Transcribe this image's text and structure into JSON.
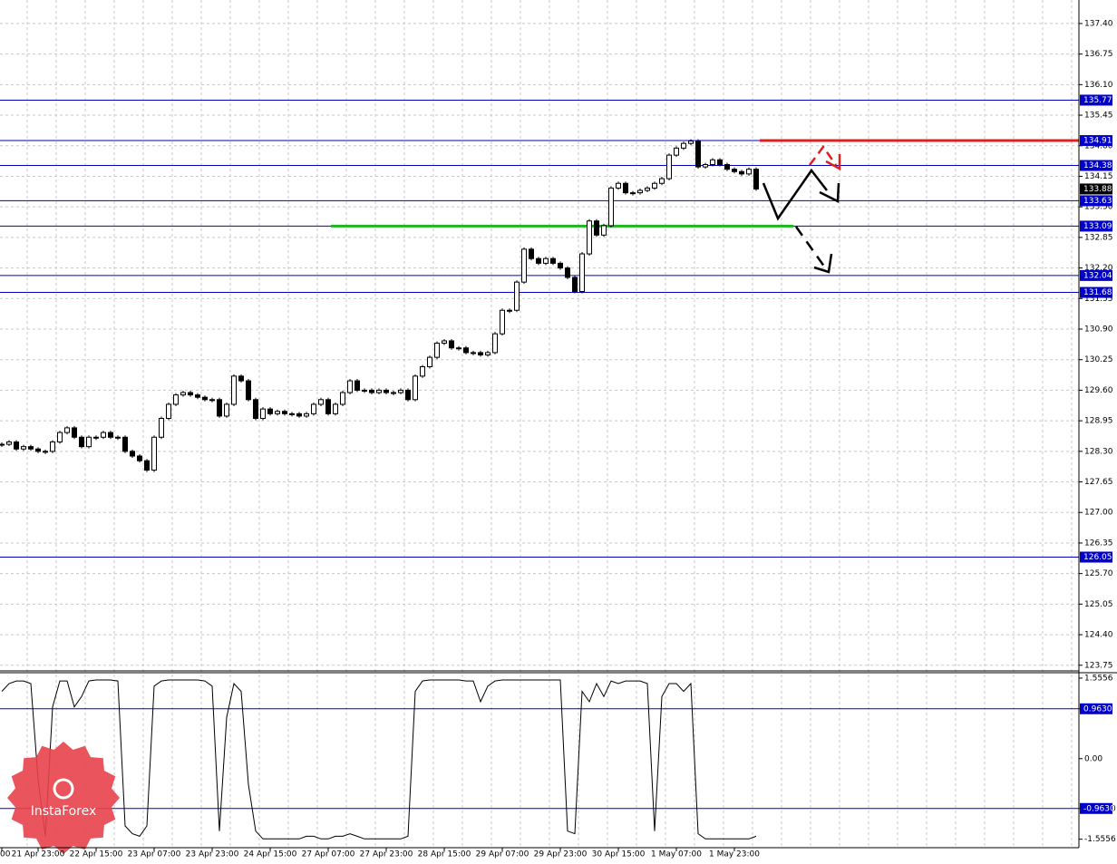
{
  "chart_data": [
    {
      "type": "candlestick",
      "categories": [
        "00",
        null,
        null,
        null,
        null,
        "21 Apr 23:00",
        null,
        null,
        null,
        null,
        null,
        null,
        null,
        "22 Apr 15:00",
        null,
        null,
        null,
        null,
        null,
        null,
        null,
        "23 Apr 07:00",
        null,
        null,
        null,
        null,
        null,
        null,
        null,
        "23 Apr 23:00",
        null,
        null,
        null,
        null,
        null,
        null,
        null,
        "24 Apr 15:00",
        null,
        null,
        null,
        null,
        null,
        null,
        null,
        "27 Apr 07:00",
        null,
        null,
        null,
        null,
        null,
        null,
        null,
        "27 Apr 23:00",
        null,
        null,
        null,
        null,
        null,
        null,
        null,
        "28 Apr 15:00",
        null,
        null,
        null,
        null,
        null,
        null,
        null,
        "29 Apr 07:00",
        null,
        null,
        null,
        null,
        null,
        null,
        null,
        "29 Apr 23:00",
        null,
        null,
        null,
        null,
        null,
        null,
        null,
        "30 Apr 15:00",
        null,
        null,
        null,
        null,
        null,
        null,
        null,
        "1 May 07:00",
        null,
        null,
        null,
        null,
        null,
        null,
        null,
        "1 May 23:00",
        null,
        null,
        null
      ],
      "values": [
        128.45,
        128.5,
        128.35,
        128.4,
        128.35,
        128.3,
        128.3,
        128.5,
        128.7,
        128.8,
        128.6,
        128.4,
        128.6,
        128.6,
        128.7,
        128.6,
        128.6,
        128.3,
        128.2,
        128.1,
        127.9,
        128.6,
        129.0,
        129.3,
        129.5,
        129.55,
        129.5,
        129.45,
        129.4,
        129.4,
        129.05,
        129.3,
        129.9,
        129.8,
        129.4,
        129.0,
        129.2,
        129.1,
        129.15,
        129.1,
        129.1,
        129.05,
        129.1,
        129.3,
        129.4,
        129.1,
        129.3,
        129.55,
        129.8,
        129.6,
        129.6,
        129.55,
        129.6,
        129.55,
        129.55,
        129.6,
        129.4,
        129.9,
        130.1,
        130.3,
        130.6,
        130.65,
        130.5,
        130.5,
        130.4,
        130.4,
        130.35,
        130.4,
        130.8,
        131.3,
        131.3,
        131.9,
        132.6,
        132.4,
        132.3,
        132.4,
        132.3,
        132.2,
        132.0,
        131.7,
        132.5,
        133.2,
        132.9,
        133.1,
        133.9,
        134.0,
        133.8,
        133.8,
        133.85,
        133.9,
        134.0,
        134.1,
        134.6,
        134.75,
        134.85,
        134.9,
        134.35,
        134.4,
        134.5,
        134.4,
        134.3,
        134.25,
        134.2,
        134.3,
        133.88
      ],
      "ylim": [
        123.63,
        137.9
      ],
      "yticks": [
        {
          "value": 137.4,
          "label": "137.40"
        },
        {
          "value": 136.75,
          "label": "136.75"
        },
        {
          "value": 136.1,
          "label": "136.10"
        },
        {
          "value": 135.45,
          "label": "135.45"
        },
        {
          "value": 134.8,
          "label": "134.80"
        },
        {
          "value": 134.15,
          "label": "134.15"
        },
        {
          "value": 133.5,
          "label": "133.50"
        },
        {
          "value": 132.85,
          "label": "132.85"
        },
        {
          "value": 132.2,
          "label": "132.20"
        },
        {
          "value": 131.55,
          "label": "131.55"
        },
        {
          "value": 130.9,
          "label": "130.90"
        },
        {
          "value": 130.25,
          "label": "130.25"
        },
        {
          "value": 129.6,
          "label": "129.60"
        },
        {
          "value": 128.95,
          "label": "128.95"
        },
        {
          "value": 128.3,
          "label": "128.30"
        },
        {
          "value": 127.65,
          "label": "127.65"
        },
        {
          "value": 127.0,
          "label": "127.00"
        },
        {
          "value": 126.35,
          "label": "126.35"
        },
        {
          "value": 125.7,
          "label": "125.70"
        },
        {
          "value": 125.05,
          "label": "125.05"
        },
        {
          "value": 124.4,
          "label": "124.40"
        },
        {
          "value": 123.75,
          "label": "123.75"
        }
      ],
      "grid": true,
      "levels": [
        135.77,
        134.91,
        134.38,
        133.63,
        133.09,
        132.04,
        131.68,
        126.05
      ],
      "level_color": "#0000c8",
      "current_price": 133.88,
      "signal_lines": [
        {
          "value": 134.91,
          "color": "#e02020"
        },
        {
          "value": 133.09,
          "color": "#1fb51f"
        }
      ]
    },
    {
      "type": "line",
      "values": [
        1.3,
        1.45,
        1.5,
        1.5,
        1.45,
        -0.4,
        -1.5,
        1.0,
        1.5,
        1.5,
        1.0,
        1.2,
        1.5,
        1.52,
        1.52,
        1.52,
        1.5,
        -1.3,
        -1.45,
        -1.5,
        -1.3,
        1.4,
        1.5,
        1.52,
        1.52,
        1.52,
        1.52,
        1.52,
        1.5,
        1.4,
        -1.4,
        0.8,
        1.45,
        1.3,
        -0.5,
        -1.4,
        -1.55,
        -1.55,
        -1.55,
        -1.55,
        -1.55,
        -1.55,
        -1.5,
        -1.5,
        -1.55,
        -1.55,
        -1.5,
        -1.5,
        -1.45,
        -1.5,
        -1.55,
        -1.55,
        -1.55,
        -1.55,
        -1.55,
        -1.55,
        -1.5,
        1.3,
        1.5,
        1.52,
        1.52,
        1.52,
        1.52,
        1.52,
        1.5,
        1.5,
        1.1,
        1.4,
        1.5,
        1.52,
        1.52,
        1.52,
        1.52,
        1.52,
        1.52,
        1.52,
        1.52,
        1.52,
        -1.4,
        -1.45,
        1.3,
        1.1,
        1.45,
        1.2,
        1.5,
        1.45,
        1.5,
        1.5,
        1.5,
        1.45,
        -1.4,
        1.2,
        1.45,
        1.45,
        1.3,
        1.45,
        -1.45,
        -1.55,
        -1.55,
        -1.55,
        -1.55,
        -1.55,
        -1.55,
        -1.55,
        -1.5
      ],
      "color": "#000000",
      "ylim": [
        -1.72,
        1.66
      ],
      "yticks": [
        1.5556,
        {
          "value": 0.963,
          "label": "0.9630"
        },
        {
          "value": 0,
          "label": "0.00"
        },
        {
          "value": -0.963,
          "label": "-0.9630"
        },
        -1.5556
      ],
      "levels": [
        0.963,
        -0.963
      ],
      "level_color": "#0000c8"
    }
  ],
  "watermark": "InstaForex"
}
